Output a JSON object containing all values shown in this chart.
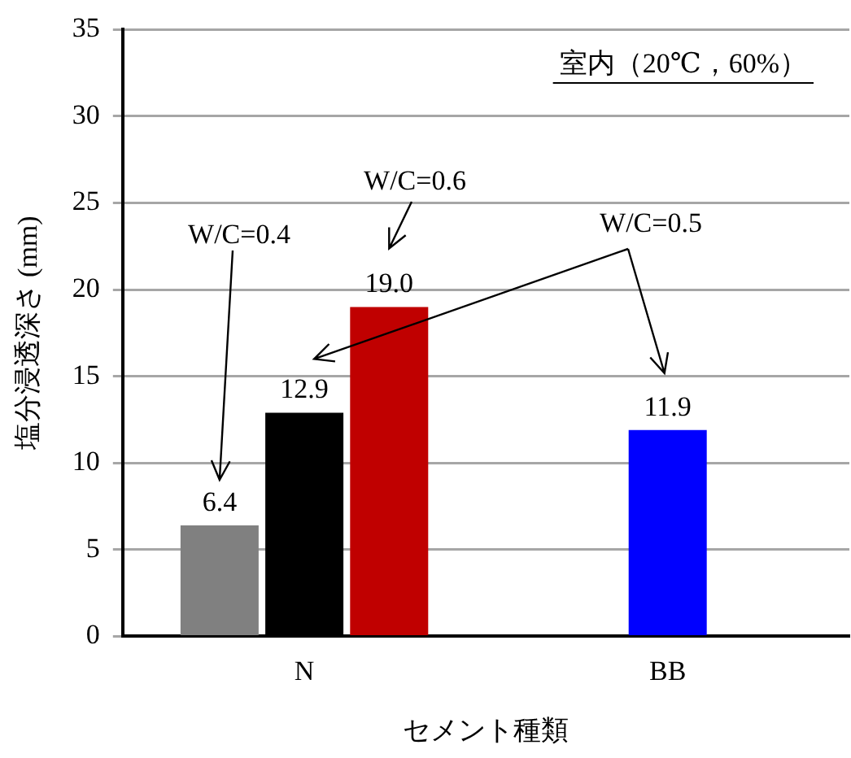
{
  "chart_data": {
    "type": "bar",
    "xlabel": "セメント種類",
    "ylabel": "塩分浸透深さ (mm)",
    "categories": [
      "N",
      "BB"
    ],
    "series": [
      {
        "color": "#808080",
        "values": [
          6.4,
          null
        ],
        "value_labels": [
          "6.4",
          null
        ]
      },
      {
        "color": "#000000",
        "values": [
          12.9,
          null
        ],
        "value_labels": [
          "12.9",
          null
        ]
      },
      {
        "color": "#c00000",
        "values": [
          19.0,
          null
        ],
        "value_labels": [
          "19.0",
          null
        ]
      },
      {
        "color": "#0000ff",
        "values": [
          null,
          11.9
        ],
        "value_labels": [
          null,
          "11.9"
        ]
      }
    ],
    "ylim": [
      0,
      35
    ],
    "yticks": [
      0,
      5,
      10,
      15,
      20,
      25,
      30,
      35
    ],
    "grid": "y",
    "legend": false,
    "annotations": [
      "W/C=0.4",
      "W/C=0.6",
      "W/C=0.5",
      "室内（20℃，60%）"
    ]
  }
}
